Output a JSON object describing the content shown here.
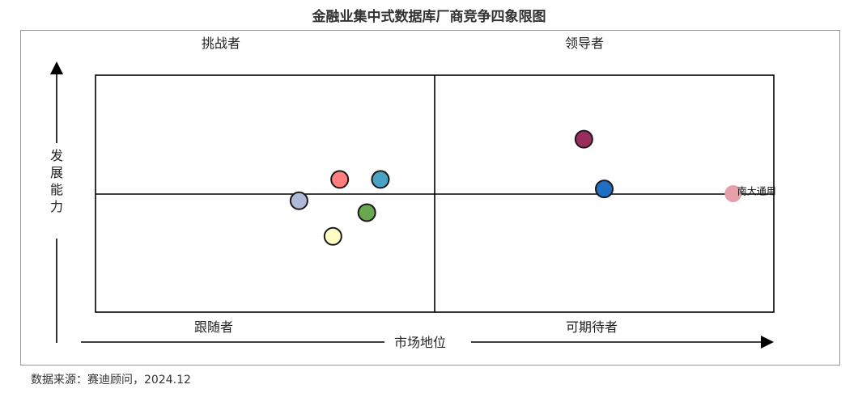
{
  "chart_data": {
    "type": "scatter",
    "title": "金融业集中式数据库厂商竞争四象限图",
    "xlabel": "市场地位",
    "ylabel": "发展能力",
    "xlim": [
      0,
      10
    ],
    "ylim": [
      0,
      10
    ],
    "quadrants": {
      "top_left": "挑战者",
      "top_right": "领导者",
      "bottom_left": "跟随者",
      "bottom_right": "可期待者"
    },
    "points": [
      {
        "x": 7.2,
        "y": 7.3,
        "color": "#9B2D5E",
        "label": ""
      },
      {
        "x": 4.2,
        "y": 5.6,
        "color": "#4BA3C3",
        "label": ""
      },
      {
        "x": 3.6,
        "y": 5.6,
        "color": "#FF7F7F",
        "label": ""
      },
      {
        "x": 7.5,
        "y": 5.2,
        "color": "#1F6FC5",
        "label": ""
      },
      {
        "x": 9.4,
        "y": 5.0,
        "color": "#E5A0AA",
        "label": "南大通用"
      },
      {
        "x": 3.0,
        "y": 4.7,
        "color": "#B0B9D9",
        "label": ""
      },
      {
        "x": 4.0,
        "y": 4.2,
        "color": "#6AA84F",
        "label": ""
      },
      {
        "x": 3.5,
        "y": 3.2,
        "color": "#FFFCC4",
        "label": ""
      }
    ]
  },
  "source": "数据来源：赛迪顾问，2024.12"
}
